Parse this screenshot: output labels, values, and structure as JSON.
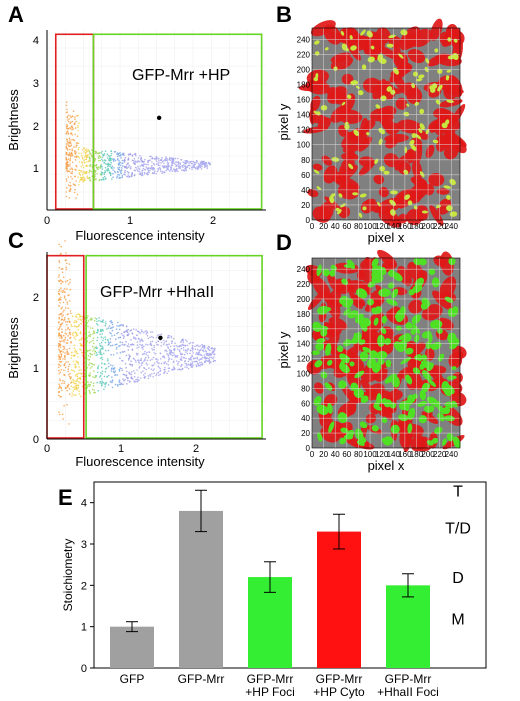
{
  "panels": {
    "A": {
      "letter": "A",
      "annotation": "GFP-Mrr +HP",
      "xlabel": "Fluorescence intensity",
      "ylabel": "Brightness",
      "xticks": [
        "0",
        "1",
        "2"
      ],
      "yticks": [
        "1",
        "2",
        "3",
        "4"
      ],
      "marker": {
        "x": 1.28,
        "y": 2.15
      }
    },
    "B": {
      "letter": "B",
      "xlabel": "pixel x",
      "ylabel": "pixel y",
      "ticks": [
        "0",
        "20",
        "40",
        "60",
        "80",
        "100",
        "120",
        "140",
        "160",
        "180",
        "200",
        "220",
        "240"
      ],
      "spot_color": "#c8e640",
      "background_color": "#e01818"
    },
    "C": {
      "letter": "C",
      "annotation": "GFP-Mrr +HhaII",
      "xlabel": "Fluorescence intensity",
      "ylabel": "Brightness",
      "xticks": [
        "0",
        "1",
        "2"
      ],
      "yticks": [
        "0",
        "1",
        "2"
      ],
      "marker": {
        "x": 1.45,
        "y": 1.38
      }
    },
    "D": {
      "letter": "D",
      "xlabel": "pixel x",
      "ylabel": "pixel y",
      "ticks": [
        "0",
        "20",
        "40",
        "60",
        "80",
        "100",
        "120",
        "140",
        "160",
        "180",
        "200",
        "220",
        "240"
      ],
      "spot_color": "#4fe024",
      "background_color": "#e01818"
    },
    "E": {
      "letter": "E",
      "ylabel": "Stoichiometry",
      "yticks": [
        "0",
        "1",
        "2",
        "3",
        "4"
      ],
      "state_labels": [
        "T",
        "T/D",
        "D",
        "M"
      ]
    }
  },
  "chart_data": [
    {
      "panel": "E",
      "type": "bar",
      "categories": [
        [
          "GFP"
        ],
        [
          "GFP-Mrr"
        ],
        [
          "GFP-Mrr",
          "+HP Foci"
        ],
        [
          "GFP-Mrr",
          "+HP Cyto"
        ],
        [
          "GFP-Mrr",
          "+HhaII Foci"
        ]
      ],
      "values": [
        1.0,
        3.8,
        2.2,
        3.3,
        2.0
      ],
      "errors": [
        0.12,
        0.5,
        0.37,
        0.42,
        0.28
      ],
      "colors": [
        "#a0a0a0",
        "#a0a0a0",
        "#33ee33",
        "#ff1111",
        "#33ee33"
      ],
      "ylabel": "Stoichiometry",
      "ylim": [
        0,
        4.5
      ],
      "state_levels": [
        {
          "label": "T",
          "y": 4.3
        },
        {
          "label": "T/D",
          "y": 3.4
        },
        {
          "label": "D",
          "y": 2.2
        },
        {
          "label": "M",
          "y": 1.2
        }
      ]
    },
    {
      "panel": "A",
      "type": "scatter",
      "xlabel": "Fluorescence intensity",
      "ylabel": "Brightness",
      "xlim": [
        0,
        2.5
      ],
      "ylim": [
        0,
        4.2
      ],
      "highlight_point": {
        "x": 1.28,
        "y": 2.15
      },
      "gates": [
        {
          "color": "#e02020",
          "x": [
            0.1,
            0.53
          ],
          "y": [
            0,
            4.1
          ]
        },
        {
          "color": "#66d422",
          "x": [
            0.53,
            2.45
          ],
          "y": [
            0,
            4.1
          ]
        }
      ]
    },
    {
      "panel": "C",
      "type": "scatter",
      "xlabel": "Fluorescence intensity",
      "ylabel": "Brightness",
      "xlim": [
        0,
        2.8
      ],
      "ylim": [
        0,
        2.55
      ],
      "highlight_point": {
        "x": 1.45,
        "y": 1.38
      },
      "gates": [
        {
          "color": "#e02020",
          "x": [
            0.0,
            0.47
          ],
          "y": [
            0,
            2.5
          ]
        },
        {
          "color": "#66d422",
          "x": [
            0.5,
            2.75
          ],
          "y": [
            0,
            2.5
          ]
        }
      ]
    }
  ]
}
